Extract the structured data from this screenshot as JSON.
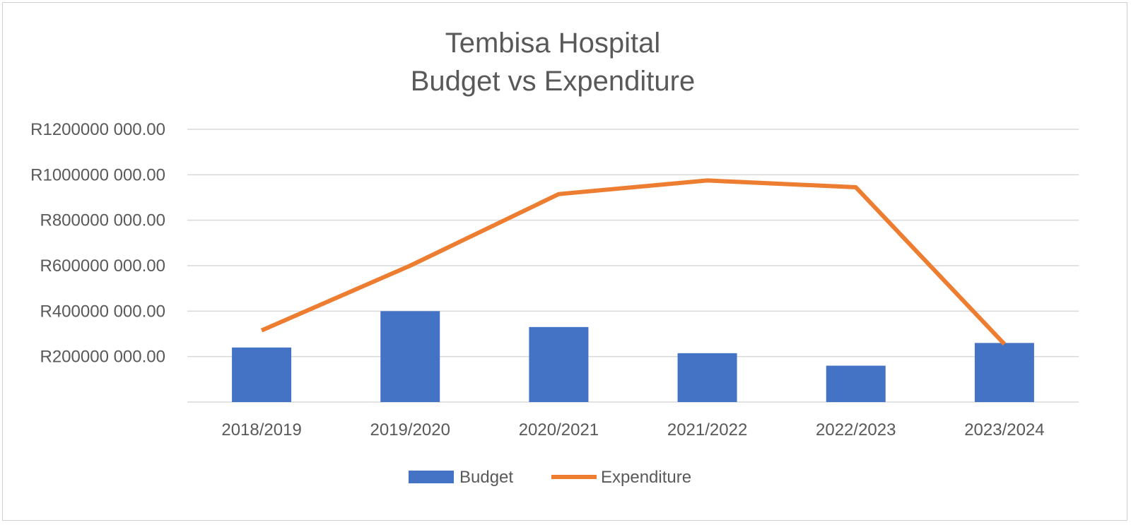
{
  "chart_data": {
    "type": "bar",
    "title": [
      "Tembisa Hospital",
      "Budget vs Expenditure"
    ],
    "categories": [
      "2018/2019",
      "2019/2020",
      "2020/2021",
      "2021/2022",
      "2022/2023",
      "2023/2024"
    ],
    "series": [
      {
        "name": "Budget",
        "type": "bar",
        "color": "#4472c4",
        "values": [
          240000000,
          400000000,
          330000000,
          215000000,
          160000000,
          260000000
        ]
      },
      {
        "name": "Expenditure",
        "type": "line",
        "color": "#ed7d31",
        "values": [
          315000000,
          600000000,
          915000000,
          975000000,
          945000000,
          255000000
        ]
      }
    ],
    "y_ticks": [
      {
        "value": 200000000,
        "label": "R200000 000.00"
      },
      {
        "value": 400000000,
        "label": "R400000 000.00"
      },
      {
        "value": 600000000,
        "label": "R600000 000.00"
      },
      {
        "value": 800000000,
        "label": "R800000 000.00"
      },
      {
        "value": 1000000000,
        "label": "R1000000 000.00"
      },
      {
        "value": 1200000000,
        "label": "R1200000 000.00"
      }
    ],
    "ylim": [
      0,
      1200000000
    ],
    "grid": true,
    "legend_position": "bottom",
    "colors": {
      "gridline": "#d9d9d9",
      "text": "#595959"
    }
  }
}
